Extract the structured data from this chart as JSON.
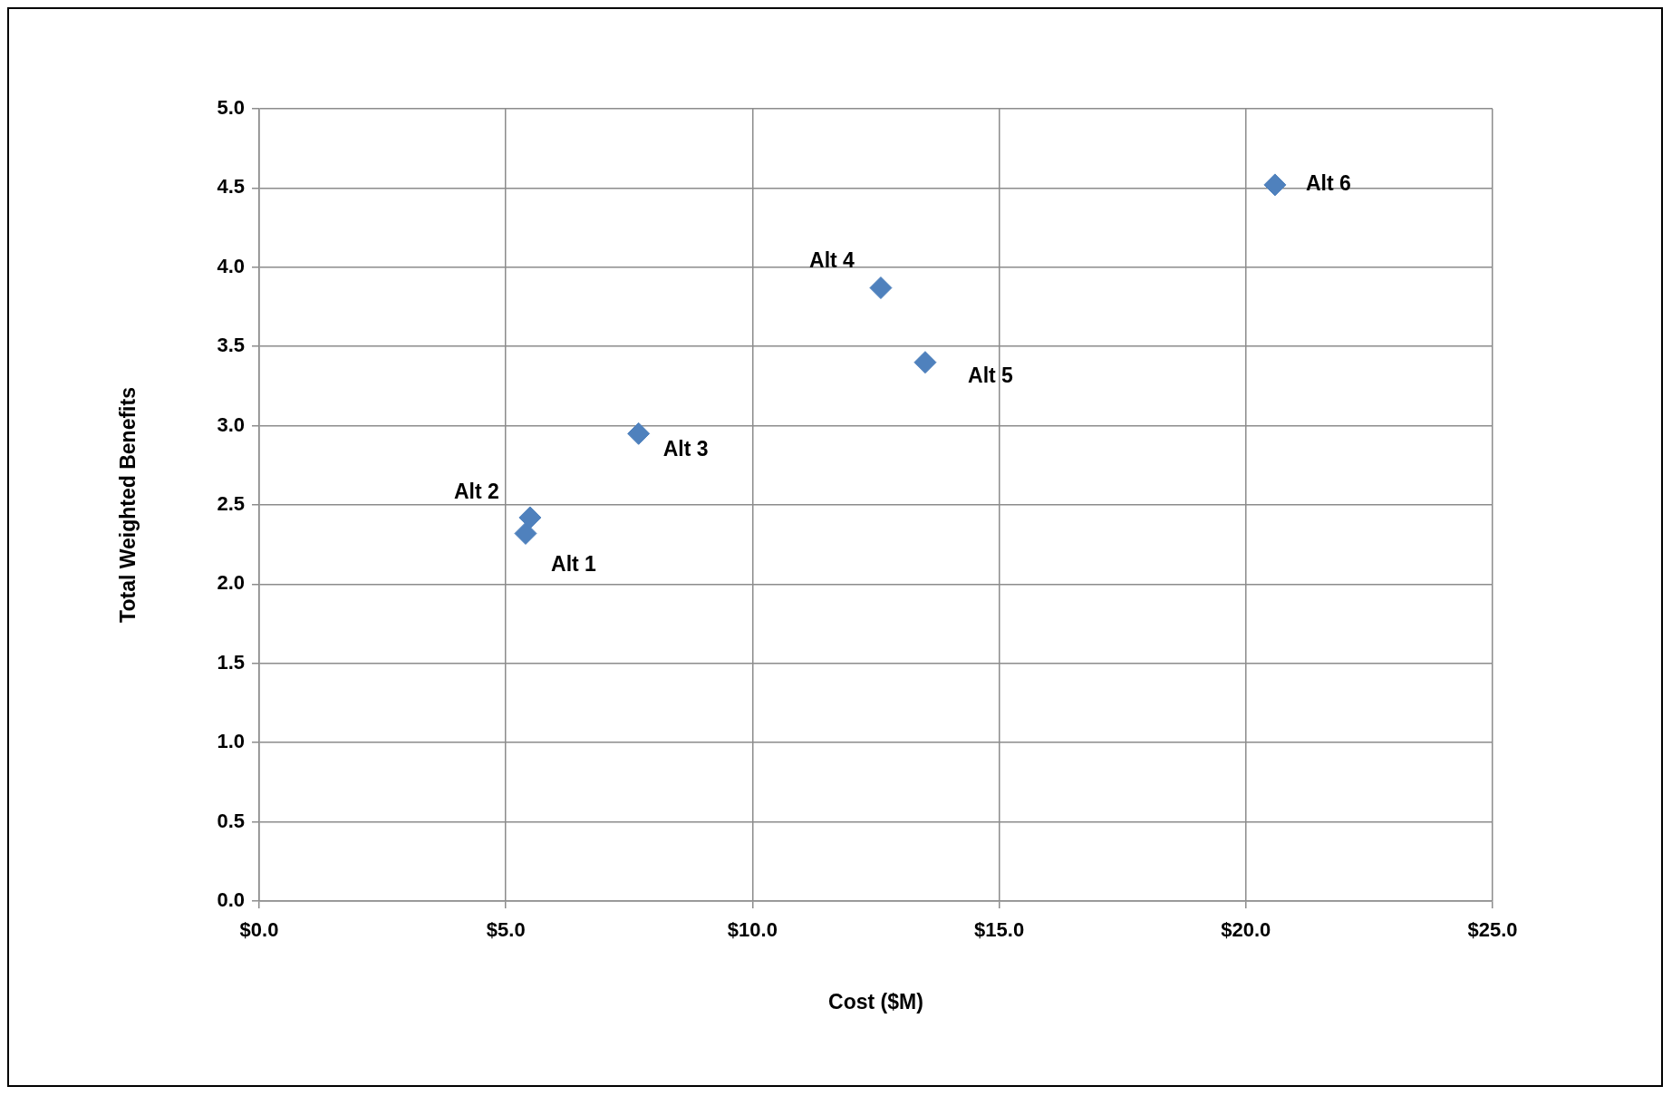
{
  "chart_data": {
    "type": "scatter",
    "xlabel": "Cost ($M)",
    "ylabel": "Total Weighted Benefits",
    "x": [
      5.4,
      5.49,
      7.69,
      12.6,
      13.5,
      20.59
    ],
    "values": [
      2.32,
      2.42,
      2.95,
      3.87,
      3.4,
      4.52
    ],
    "color": "#4f81bd",
    "marker": "diamond",
    "xlim": [
      0,
      25
    ],
    "xticks": [
      {
        "value": 0,
        "label": "$0.0"
      },
      {
        "value": 5,
        "label": "$5.0"
      },
      {
        "value": 10,
        "label": "$10.0"
      },
      {
        "value": 15,
        "label": "$15.0"
      },
      {
        "value": 20,
        "label": "$20.0"
      },
      {
        "value": 25,
        "label": "$25.0"
      }
    ],
    "ylim": [
      0,
      5
    ],
    "yticks": [
      {
        "value": 0,
        "label": "0.0"
      },
      {
        "value": 0.5,
        "label": "0.5"
      },
      {
        "value": 1,
        "label": "1.0"
      },
      {
        "value": 1.5,
        "label": "1.5"
      },
      {
        "value": 2,
        "label": "2.0"
      },
      {
        "value": 2.5,
        "label": "2.5"
      },
      {
        "value": 3,
        "label": "3.0"
      },
      {
        "value": 3.5,
        "label": "3.5"
      },
      {
        "value": 4,
        "label": "4.0"
      },
      {
        "value": 4.5,
        "label": "4.5"
      },
      {
        "value": 5,
        "label": "5.0"
      }
    ],
    "grid": true,
    "legend": false,
    "annotations": [
      {
        "text": "Alt 1",
        "x": 5.4,
        "y": 2.32
      },
      {
        "text": "Alt 2",
        "x": 5.49,
        "y": 2.42
      },
      {
        "text": "Alt 3",
        "x": 7.69,
        "y": 2.95
      },
      {
        "text": "Alt 4",
        "x": 12.6,
        "y": 3.87
      },
      {
        "text": "Alt 5",
        "x": 13.5,
        "y": 3.4
      },
      {
        "text": "Alt 6",
        "x": 20.59,
        "y": 4.52
      }
    ]
  }
}
